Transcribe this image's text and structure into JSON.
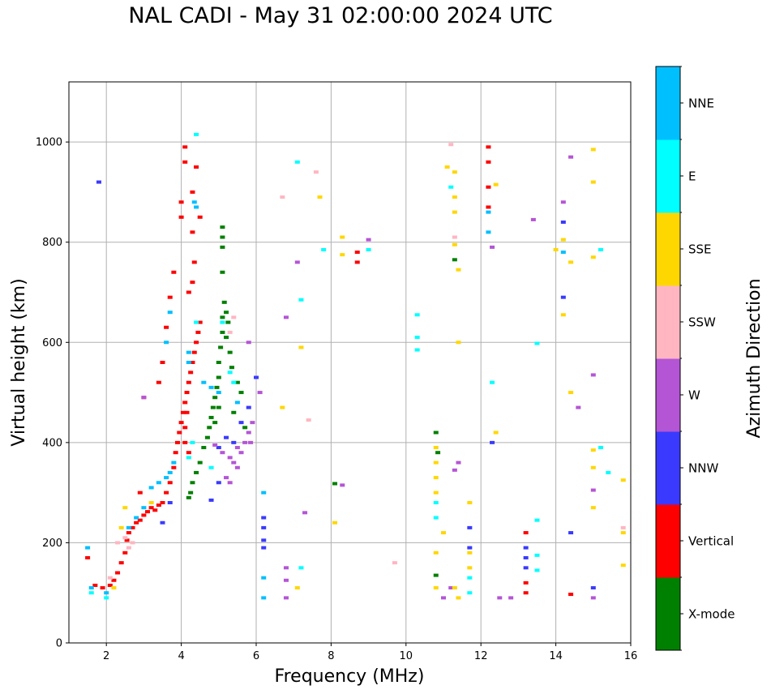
{
  "chart_data": {
    "type": "scatter",
    "title": "NAL CADI - May 31 02:00:00 2024 UTC",
    "xlabel": "Frequency (MHz)",
    "ylabel": "Virtual height (km)",
    "xlim": [
      1,
      16
    ],
    "ylim": [
      0,
      1120
    ],
    "xticks": [
      2,
      4,
      6,
      8,
      10,
      12,
      14,
      16
    ],
    "yticks": [
      0,
      200,
      400,
      600,
      800,
      1000
    ],
    "grid": true,
    "colorbar": {
      "label": "Azimuth Direction",
      "categories": [
        {
          "name": "X-mode",
          "color": "#008000"
        },
        {
          "name": "Vertical",
          "color": "#ff0000"
        },
        {
          "name": "NNW",
          "color": "#3a3aff"
        },
        {
          "name": "W",
          "color": "#b455d6"
        },
        {
          "name": "SSW",
          "color": "#ffb6c1"
        },
        {
          "name": "SSE",
          "color": "#ffd700"
        },
        {
          "name": "E",
          "color": "#00ffff"
        },
        {
          "name": "NNE",
          "color": "#00bfff"
        }
      ]
    },
    "series": [
      {
        "name": "X-mode",
        "points": [
          [
            4.2,
            290
          ],
          [
            4.25,
            300
          ],
          [
            4.3,
            320
          ],
          [
            4.4,
            340
          ],
          [
            4.5,
            360
          ],
          [
            4.6,
            390
          ],
          [
            4.7,
            410
          ],
          [
            4.75,
            430
          ],
          [
            4.8,
            450
          ],
          [
            4.85,
            470
          ],
          [
            4.9,
            490
          ],
          [
            4.95,
            510
          ],
          [
            5.0,
            530
          ],
          [
            5.0,
            560
          ],
          [
            5.05,
            590
          ],
          [
            5.1,
            620
          ],
          [
            5.1,
            650
          ],
          [
            5.15,
            680
          ],
          [
            5.2,
            660
          ],
          [
            5.25,
            640
          ],
          [
            5.2,
            610
          ],
          [
            5.3,
            580
          ],
          [
            5.35,
            550
          ],
          [
            5.1,
            740
          ],
          [
            5.1,
            790
          ],
          [
            5.1,
            810
          ],
          [
            5.1,
            830
          ],
          [
            4.9,
            440
          ],
          [
            5.0,
            470
          ],
          [
            5.4,
            460
          ],
          [
            5.5,
            520
          ],
          [
            5.6,
            500
          ],
          [
            5.7,
            430
          ],
          [
            8.1,
            318
          ],
          [
            10.8,
            420
          ],
          [
            10.8,
            135
          ],
          [
            11.3,
            765
          ],
          [
            10.85,
            380
          ]
        ]
      },
      {
        "name": "Vertical",
        "points": [
          [
            1.5,
            170
          ],
          [
            1.7,
            115
          ],
          [
            1.9,
            110
          ],
          [
            2.1,
            115
          ],
          [
            2.2,
            125
          ],
          [
            2.3,
            140
          ],
          [
            2.4,
            160
          ],
          [
            2.5,
            180
          ],
          [
            2.55,
            205
          ],
          [
            2.6,
            220
          ],
          [
            2.7,
            230
          ],
          [
            2.8,
            240
          ],
          [
            2.9,
            245
          ],
          [
            3.0,
            255
          ],
          [
            3.1,
            262
          ],
          [
            3.2,
            270
          ],
          [
            3.3,
            265
          ],
          [
            3.4,
            275
          ],
          [
            3.5,
            280
          ],
          [
            3.6,
            300
          ],
          [
            3.7,
            320
          ],
          [
            3.8,
            350
          ],
          [
            3.85,
            380
          ],
          [
            3.9,
            400
          ],
          [
            3.95,
            420
          ],
          [
            4.0,
            440
          ],
          [
            4.05,
            460
          ],
          [
            4.1,
            480
          ],
          [
            4.15,
            500
          ],
          [
            4.2,
            520
          ],
          [
            4.25,
            540
          ],
          [
            4.3,
            560
          ],
          [
            4.35,
            580
          ],
          [
            4.4,
            600
          ],
          [
            4.45,
            620
          ],
          [
            4.5,
            640
          ],
          [
            4.1,
            400
          ],
          [
            4.1,
            430
          ],
          [
            4.15,
            460
          ],
          [
            4.2,
            380
          ],
          [
            4.0,
            850
          ],
          [
            4.0,
            880
          ],
          [
            4.1,
            960
          ],
          [
            4.1,
            990
          ],
          [
            4.3,
            900
          ],
          [
            4.4,
            950
          ],
          [
            4.2,
            700
          ],
          [
            4.3,
            720
          ],
          [
            3.8,
            740
          ],
          [
            3.7,
            690
          ],
          [
            3.6,
            630
          ],
          [
            3.5,
            560
          ],
          [
            3.4,
            520
          ],
          [
            3.0,
            490
          ],
          [
            2.9,
            300
          ],
          [
            4.5,
            850
          ],
          [
            4.3,
            820
          ],
          [
            4.35,
            760
          ],
          [
            8.7,
            780
          ],
          [
            8.7,
            760
          ],
          [
            12.2,
            990
          ],
          [
            12.2,
            960
          ],
          [
            12.2,
            910
          ],
          [
            12.2,
            870
          ],
          [
            13.2,
            120
          ],
          [
            13.2,
            100
          ],
          [
            13.2,
            220
          ],
          [
            14.4,
            97
          ]
        ]
      },
      {
        "name": "NNW",
        "points": [
          [
            1.8,
            920
          ],
          [
            3.5,
            240
          ],
          [
            3.7,
            280
          ],
          [
            4.8,
            285
          ],
          [
            5.0,
            320
          ],
          [
            5.0,
            390
          ],
          [
            5.2,
            410
          ],
          [
            5.4,
            400
          ],
          [
            5.6,
            440
          ],
          [
            5.8,
            470
          ],
          [
            6.0,
            530
          ],
          [
            6.2,
            250
          ],
          [
            6.2,
            230
          ],
          [
            6.2,
            205
          ],
          [
            6.2,
            190
          ],
          [
            11.7,
            230
          ],
          [
            11.7,
            190
          ],
          [
            12.3,
            400
          ],
          [
            13.2,
            190
          ],
          [
            13.2,
            170
          ],
          [
            13.2,
            150
          ],
          [
            14.2,
            690
          ],
          [
            14.2,
            840
          ],
          [
            14.4,
            220
          ],
          [
            15.0,
            110
          ]
        ]
      },
      {
        "name": "W",
        "points": [
          [
            3.0,
            490
          ],
          [
            4.9,
            395
          ],
          [
            5.1,
            380
          ],
          [
            5.3,
            370
          ],
          [
            5.5,
            390
          ],
          [
            5.7,
            400
          ],
          [
            5.8,
            420
          ],
          [
            5.9,
            440
          ],
          [
            5.85,
            400
          ],
          [
            5.6,
            380
          ],
          [
            5.5,
            350
          ],
          [
            5.3,
            320
          ],
          [
            5.2,
            330
          ],
          [
            5.4,
            360
          ],
          [
            5.8,
            600
          ],
          [
            6.1,
            500
          ],
          [
            6.8,
            650
          ],
          [
            6.8,
            150
          ],
          [
            6.8,
            125
          ],
          [
            6.8,
            90
          ],
          [
            7.3,
            260
          ],
          [
            7.1,
            760
          ],
          [
            9.0,
            805
          ],
          [
            8.3,
            315
          ],
          [
            11.0,
            90
          ],
          [
            11.2,
            110
          ],
          [
            11.4,
            360
          ],
          [
            11.3,
            345
          ],
          [
            12.3,
            790
          ],
          [
            12.5,
            90
          ],
          [
            12.8,
            90
          ],
          [
            13.4,
            845
          ],
          [
            14.2,
            880
          ],
          [
            14.4,
            970
          ],
          [
            14.6,
            470
          ],
          [
            15.0,
            535
          ],
          [
            15.0,
            305
          ],
          [
            15.0,
            90
          ]
        ]
      },
      {
        "name": "SSW",
        "points": [
          [
            2.1,
            130
          ],
          [
            2.3,
            200
          ],
          [
            2.5,
            210
          ],
          [
            2.6,
            190
          ],
          [
            2.7,
            200
          ],
          [
            5.3,
            620
          ],
          [
            5.4,
            650
          ],
          [
            6.7,
            890
          ],
          [
            7.6,
            940
          ],
          [
            7.4,
            445
          ],
          [
            9.7,
            160
          ],
          [
            11.2,
            995
          ],
          [
            11.3,
            810
          ],
          [
            15.8,
            230
          ]
        ]
      },
      {
        "name": "SSE",
        "points": [
          [
            2.2,
            110
          ],
          [
            2.4,
            230
          ],
          [
            2.5,
            270
          ],
          [
            3.2,
            280
          ],
          [
            6.7,
            470
          ],
          [
            7.2,
            590
          ],
          [
            7.1,
            110
          ],
          [
            7.7,
            890
          ],
          [
            8.1,
            240
          ],
          [
            8.3,
            775
          ],
          [
            8.3,
            810
          ],
          [
            10.8,
            300
          ],
          [
            10.8,
            330
          ],
          [
            10.8,
            360
          ],
          [
            10.8,
            390
          ],
          [
            10.8,
            180
          ],
          [
            10.8,
            110
          ],
          [
            11.0,
            220
          ],
          [
            11.1,
            950
          ],
          [
            11.3,
            940
          ],
          [
            11.3,
            890
          ],
          [
            11.3,
            860
          ],
          [
            11.3,
            795
          ],
          [
            11.4,
            745
          ],
          [
            11.4,
            600
          ],
          [
            11.7,
            150
          ],
          [
            11.7,
            180
          ],
          [
            11.7,
            280
          ],
          [
            11.3,
            110
          ],
          [
            11.4,
            90
          ],
          [
            12.4,
            915
          ],
          [
            12.4,
            420
          ],
          [
            14.0,
            785
          ],
          [
            14.2,
            805
          ],
          [
            14.2,
            655
          ],
          [
            14.4,
            760
          ],
          [
            14.4,
            500
          ],
          [
            15.0,
            985
          ],
          [
            15.0,
            920
          ],
          [
            15.0,
            770
          ],
          [
            15.0,
            385
          ],
          [
            15.0,
            350
          ],
          [
            15.0,
            270
          ],
          [
            15.8,
            325
          ],
          [
            15.8,
            220
          ],
          [
            15.8,
            155
          ]
        ]
      },
      {
        "name": "E",
        "points": [
          [
            1.6,
            100
          ],
          [
            2.0,
            90
          ],
          [
            4.4,
            1015
          ],
          [
            4.4,
            640
          ],
          [
            4.3,
            400
          ],
          [
            4.2,
            370
          ],
          [
            4.8,
            350
          ],
          [
            5.1,
            640
          ],
          [
            5.3,
            540
          ],
          [
            5.4,
            520
          ],
          [
            7.1,
            960
          ],
          [
            7.2,
            685
          ],
          [
            7.2,
            150
          ],
          [
            7.8,
            785
          ],
          [
            9.0,
            785
          ],
          [
            10.3,
            655
          ],
          [
            10.3,
            610
          ],
          [
            10.3,
            585
          ],
          [
            10.8,
            250
          ],
          [
            10.8,
            280
          ],
          [
            11.2,
            910
          ],
          [
            11.7,
            100
          ],
          [
            11.7,
            130
          ],
          [
            12.3,
            520
          ],
          [
            13.5,
            245
          ],
          [
            13.5,
            175
          ],
          [
            13.5,
            145
          ],
          [
            13.5,
            598
          ],
          [
            15.2,
            785
          ],
          [
            15.2,
            390
          ],
          [
            15.4,
            340
          ]
        ]
      },
      {
        "name": "NNE",
        "points": [
          [
            1.5,
            190
          ],
          [
            1.6,
            110
          ],
          [
            2.0,
            100
          ],
          [
            2.6,
            230
          ],
          [
            2.8,
            250
          ],
          [
            3.0,
            270
          ],
          [
            3.2,
            310
          ],
          [
            3.4,
            320
          ],
          [
            3.6,
            330
          ],
          [
            3.7,
            340
          ],
          [
            3.8,
            360
          ],
          [
            3.6,
            600
          ],
          [
            3.7,
            660
          ],
          [
            4.35,
            880
          ],
          [
            4.4,
            870
          ],
          [
            4.2,
            580
          ],
          [
            4.2,
            560
          ],
          [
            4.6,
            520
          ],
          [
            4.8,
            510
          ],
          [
            5.0,
            500
          ],
          [
            5.5,
            480
          ],
          [
            6.2,
            300
          ],
          [
            6.2,
            130
          ],
          [
            6.2,
            90
          ],
          [
            12.2,
            820
          ],
          [
            12.2,
            860
          ],
          [
            14.2,
            780
          ]
        ]
      }
    ]
  }
}
